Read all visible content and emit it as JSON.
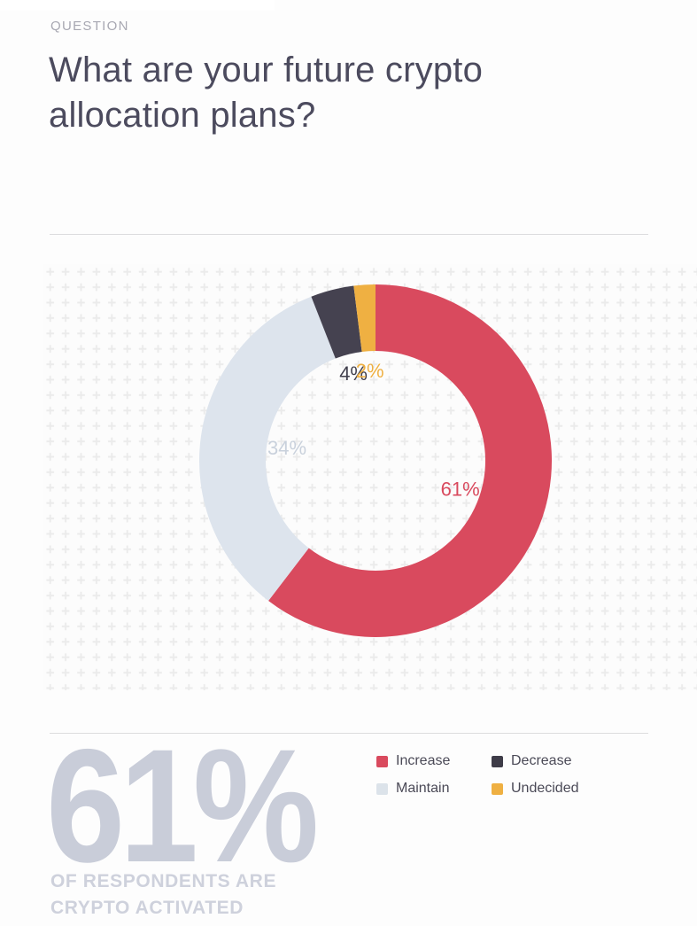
{
  "page": {
    "eyebrow": "QUESTION",
    "title_line1": "What are your future crypto",
    "title_line2": "allocation plans?"
  },
  "chart_data": {
    "type": "pie",
    "variant": "donut",
    "title": "What are your future crypto allocation plans?",
    "unit": "%",
    "start_position": "top",
    "direction": "clockwise",
    "grid_pattern": "plus-marks",
    "grid_color": "#ebebeb",
    "segments": [
      {
        "label": "Increase",
        "value": 61,
        "display": "61%",
        "color": "#d94a5e",
        "label_color": "#d94a5e"
      },
      {
        "label": "Maintain",
        "value": 34,
        "display": "34%",
        "color": "#dde4ed",
        "label_color": "#c9d1dc"
      },
      {
        "label": "Decrease",
        "value": 4,
        "display": "4%",
        "color": "#454250",
        "label_color": "#3f3e4b"
      },
      {
        "label": "Undecided",
        "value": 2,
        "display": "2%",
        "color": "#efb042",
        "label_color": "#efb042"
      }
    ],
    "legend_position": "bottom-right"
  },
  "legend": {
    "items": [
      {
        "label": "Increase",
        "color": "#d94a5e"
      },
      {
        "label": "Decrease",
        "color": "#3e3c48"
      },
      {
        "label": "Maintain",
        "color": "#dce3ea"
      },
      {
        "label": "Undecided",
        "color": "#efb042"
      }
    ]
  },
  "highlight": {
    "big_stat": "61%",
    "caption_line1": "OF RESPONDENTS ARE",
    "caption_line2": "CRYPTO ACTIVATED"
  }
}
